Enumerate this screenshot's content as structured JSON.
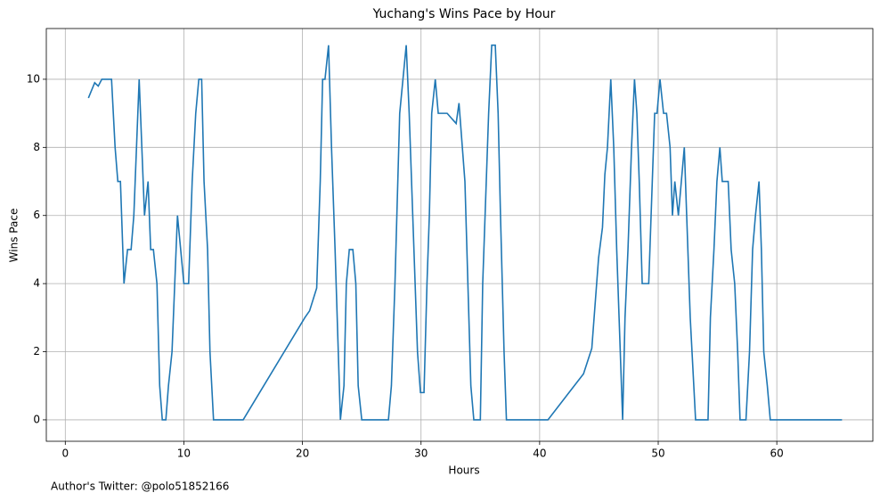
{
  "chart_data": {
    "type": "line",
    "title": "Yuchang's Wins Pace by Hour",
    "xlabel": "Hours",
    "ylabel": "Wins Pace",
    "footnote": "Author's Twitter: @polo51852166",
    "grid": true,
    "color": "#1f77b4",
    "xlim": [
      -1.6,
      68.1
    ],
    "ylim": [
      -0.63,
      11.49
    ],
    "xticks": [
      0,
      10,
      20,
      30,
      40,
      50,
      60
    ],
    "yticks": [
      0,
      2,
      4,
      6,
      8,
      10
    ],
    "x": [
      1.95,
      2.48,
      2.78,
      3.08,
      3.4,
      3.9,
      4.2,
      4.43,
      4.65,
      4.95,
      5.25,
      5.55,
      5.78,
      6.23,
      6.68,
      6.98,
      7.2,
      7.43,
      7.73,
      7.96,
      8.18,
      8.48,
      8.7,
      9.0,
      9.46,
      10,
      10.4,
      10.7,
      11,
      11.26,
      11.5,
      11.7,
      12,
      12.2,
      12.5,
      15,
      20.2,
      20.6,
      21.2,
      21.5,
      21.7,
      21.9,
      22.2,
      22.45,
      22.75,
      23.2,
      23.5,
      23.7,
      23.95,
      24.25,
      24.5,
      24.7,
      25,
      27.25,
      27.5,
      27.8,
      28.2,
      28.75,
      29,
      29.5,
      29.7,
      29.95,
      30.25,
      30.5,
      30.7,
      30.9,
      31.2,
      31.45,
      32.2,
      32.96,
      33.2,
      33.7,
      34.2,
      34.45,
      35,
      35.2,
      35.5,
      35.7,
      35.96,
      36.26,
      36.5,
      36.7,
      37,
      37.2,
      40.7,
      43.7,
      44.4,
      44.97,
      45.3,
      45.5,
      45.72,
      46,
      46.25,
      46.5,
      46.7,
      47,
      47.2,
      47.45,
      47.75,
      48,
      48.2,
      48.4,
      48.65,
      49.2,
      49.5,
      49.7,
      49.9,
      50.15,
      50.45,
      50.7,
      51,
      51.2,
      51.4,
      51.7,
      52.2,
      52.4,
      52.7,
      53.15,
      54.2,
      54.4,
      54.7,
      54.95,
      55.2,
      55.4,
      55.9,
      56.15,
      56.45,
      56.7,
      56.9,
      57.4,
      57.7,
      57.96,
      58.2,
      58.5,
      58.7,
      58.9,
      59.2,
      59.45,
      65.5
    ],
    "values": [
      9.45,
      9.9,
      9.8,
      10,
      10,
      10,
      8,
      7,
      7,
      4,
      5,
      5,
      6,
      10,
      6,
      7,
      5,
      5,
      4,
      1,
      0,
      0,
      1,
      2,
      6,
      4,
      4,
      7,
      9,
      10,
      10,
      7,
      5,
      2,
      0,
      0,
      3,
      3.2,
      3.87,
      7,
      10,
      10,
      11,
      8,
      5,
      0,
      1,
      4,
      5,
      5,
      4,
      1,
      0,
      0,
      1,
      4,
      9,
      11,
      9,
      4,
      2,
      0.8,
      0.8,
      4,
      6,
      9,
      10,
      9,
      9,
      8.7,
      9.3,
      7,
      1,
      0,
      0,
      4,
      7,
      9,
      11,
      11,
      9,
      6,
      2,
      0,
      0,
      1.35,
      2.1,
      4.75,
      5.65,
      7.2,
      8,
      10,
      8,
      5,
      3,
      0,
      3,
      5,
      8,
      10,
      9,
      7,
      4,
      4,
      7,
      9,
      9,
      10,
      9,
      9,
      8,
      6,
      7,
      6,
      8,
      6,
      3,
      0,
      0,
      3,
      5,
      7,
      8,
      7,
      7,
      5,
      4,
      2,
      0,
      0,
      2,
      5,
      6,
      7,
      5,
      2,
      1,
      0,
      0
    ]
  }
}
